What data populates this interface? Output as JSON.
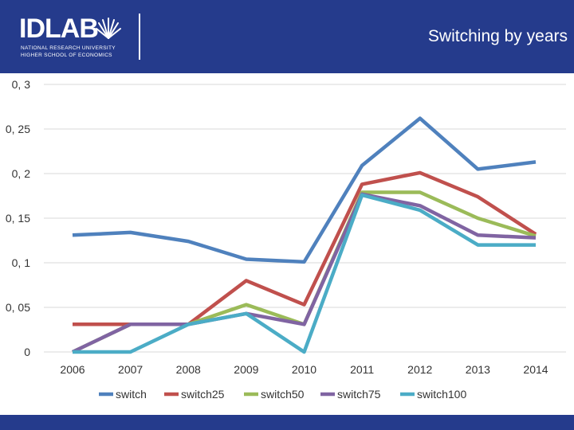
{
  "header": {
    "logo_main": "IDLAB",
    "logo_sub1": "NATIONAL RESEARCH UNIVERSITY",
    "logo_sub2": "HIGHER SCHOOL OF ECONOMICS"
  },
  "colors": {
    "brand": "#253b8c",
    "white": "#ffffff"
  },
  "chart_data": {
    "type": "line",
    "title": "Switching by years",
    "xlabel": "",
    "ylabel": "",
    "x": [
      "2006",
      "2007",
      "2008",
      "2009",
      "2010",
      "2011",
      "2012",
      "2013",
      "2014"
    ],
    "ylim": [
      0,
      0.3
    ],
    "yticks": [
      0,
      0.05,
      0.1,
      0.15,
      0.2,
      0.25,
      0.3
    ],
    "ytick_labels": [
      "0",
      "0, 05",
      "0, 1",
      "0, 15",
      "0, 2",
      "0, 25",
      "0, 3"
    ],
    "grid": true,
    "legend_position": "bottom",
    "series": [
      {
        "name": "switch",
        "color": "#4f81bd",
        "values": [
          0.131,
          0.134,
          0.124,
          0.104,
          0.101,
          0.209,
          0.262,
          0.205,
          0.213
        ]
      },
      {
        "name": "switch25",
        "color": "#c0504d",
        "values": [
          0.031,
          0.031,
          0.031,
          0.08,
          0.053,
          0.188,
          0.201,
          0.174,
          0.132
        ]
      },
      {
        "name": "switch50",
        "color": "#9bbb59",
        "values": [
          0.0,
          0.031,
          0.031,
          0.053,
          0.031,
          0.179,
          0.179,
          0.15,
          0.13
        ]
      },
      {
        "name": "switch75",
        "color": "#8064a2",
        "values": [
          0.0,
          0.031,
          0.031,
          0.043,
          0.031,
          0.177,
          0.164,
          0.131,
          0.128
        ]
      },
      {
        "name": "switch100",
        "color": "#4bacc6",
        "values": [
          0.0,
          0.0,
          0.031,
          0.043,
          0.0,
          0.176,
          0.159,
          0.12,
          0.12
        ]
      }
    ]
  }
}
